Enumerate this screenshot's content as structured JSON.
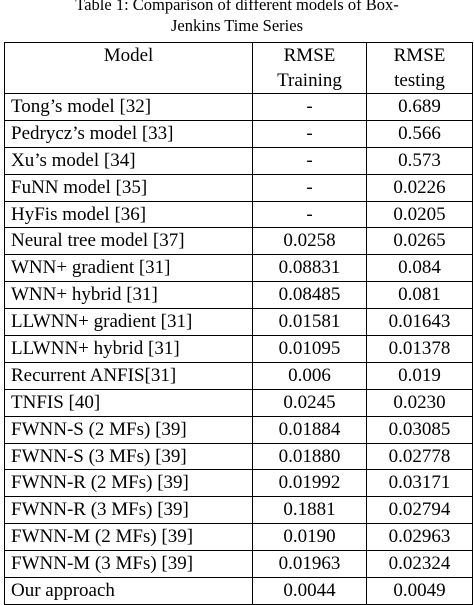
{
  "caption": {
    "line1": "Table 1: Comparison of different models of Box-",
    "line2": "Jenkins Time Series"
  },
  "header": {
    "model": "Model",
    "train_line1": "RMSE",
    "train_line2": "Training",
    "test_line1": "RMSE",
    "test_line2": "testing"
  },
  "rows": [
    {
      "model": "Tong’s model [32]",
      "train": "-",
      "test": "0.689"
    },
    {
      "model": "Pedrycz’s model [33]",
      "train": "-",
      "test": "0.566"
    },
    {
      "model": "Xu’s model [34]",
      "train": "-",
      "test": "0.573"
    },
    {
      "model": "FuNN model [35]",
      "train": "-",
      "test": "0.0226"
    },
    {
      "model": "HyFis model [36]",
      "train": "-",
      "test": "0.0205"
    },
    {
      "model": "Neural tree model [37]",
      "train": "0.0258",
      "test": "0.0265"
    },
    {
      "model": "WNN+ gradient  [31]",
      "train": "0.08831",
      "test": "0.084"
    },
    {
      "model": "WNN+ hybrid [31]",
      "train": "0.08485",
      "test": "0.081"
    },
    {
      "model": "LLWNN+ gradient [31]",
      "train": "0.01581",
      "test": "0.01643"
    },
    {
      "model": "LLWNN+ hybrid [31]",
      "train": "0.01095",
      "test": "0.01378"
    },
    {
      "model": "Recurrent ANFIS[31]",
      "train": "0.006",
      "test": "0.019"
    },
    {
      "model": "TNFIS [40]",
      "train": "0.0245",
      "test": "0.0230"
    },
    {
      "model": "FWNN-S (2 MFs) [39]",
      "train": "0.01884",
      "test": "0.03085"
    },
    {
      "model": "FWNN-S (3 MFs) [39]",
      "train": "0.01880",
      "test": "0.02778"
    },
    {
      "model": "FWNN-R (2 MFs) [39]",
      "train": "0.01992",
      "test": "0.03171"
    },
    {
      "model": "FWNN-R (3 MFs) [39]",
      "train": "0.1881",
      "test": "0.02794"
    },
    {
      "model": "FWNN-M (2 MFs) [39]",
      "train": "0.0190",
      "test": "0.02963"
    },
    {
      "model": "FWNN-M (3 MFs) [39]",
      "train": "0.01963",
      "test": "0.02324"
    },
    {
      "model": "Our approach",
      "train": "0.0044",
      "test": "0.0049"
    }
  ]
}
